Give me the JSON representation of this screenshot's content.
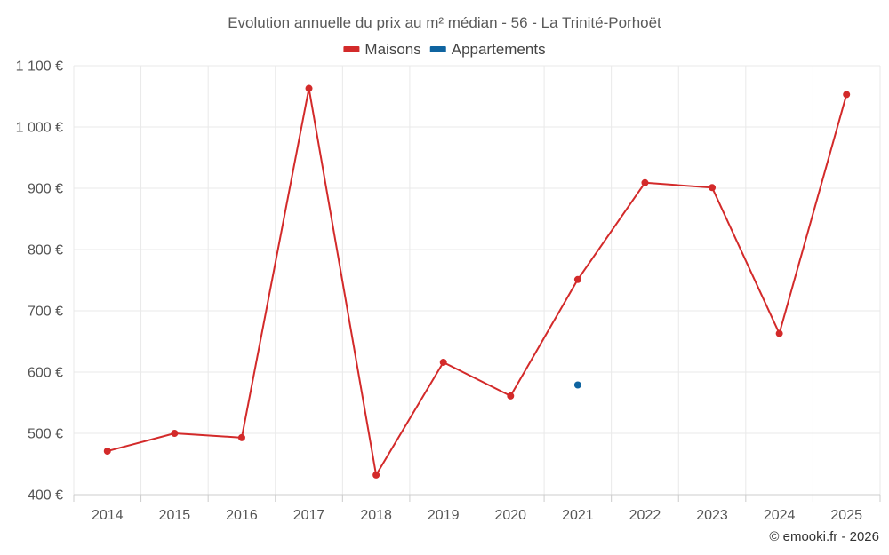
{
  "chart_data": {
    "type": "line",
    "title": "Evolution annuelle du prix au m² médian - 56 - La Trinité-Porhoët",
    "categories": [
      "2014",
      "2015",
      "2016",
      "2017",
      "2018",
      "2019",
      "2020",
      "2021",
      "2022",
      "2023",
      "2024",
      "2025"
    ],
    "ylim": [
      400,
      1100
    ],
    "yticks": [
      400,
      500,
      600,
      700,
      800,
      900,
      1000,
      1100
    ],
    "ytick_labels": [
      "400 €",
      "500 €",
      "600 €",
      "700 €",
      "800 €",
      "900 €",
      "1 000 €",
      "1 100 €"
    ],
    "grid": true,
    "legend_position": "top-center",
    "series": [
      {
        "name": "Maisons",
        "color": "#d32a2a",
        "values": [
          471,
          500,
          493,
          1063,
          432,
          616,
          561,
          751,
          909,
          901,
          663,
          1053
        ]
      },
      {
        "name": "Appartements",
        "color": "#0f64a0",
        "values": [
          null,
          null,
          null,
          null,
          null,
          null,
          null,
          579,
          null,
          null,
          null,
          null
        ]
      }
    ],
    "credit": "© emooki.fr - 2026"
  }
}
